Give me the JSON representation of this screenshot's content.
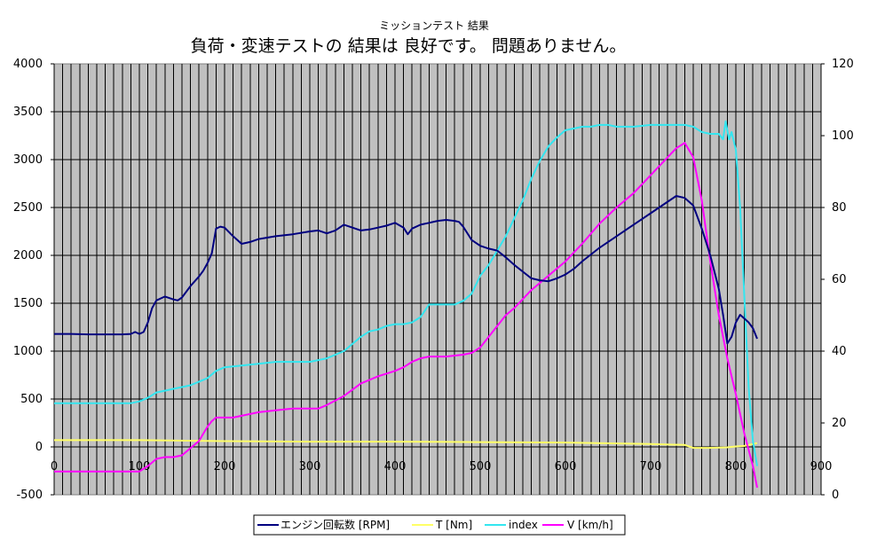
{
  "chart_data": {
    "type": "line",
    "subtitle": "ミッションテスト 結果",
    "title": "負荷・変速テストの 結果は 良好です。  問題ありません。",
    "xlim": [
      0,
      900
    ],
    "x_ticks": [
      "0",
      "100",
      "200",
      "300",
      "400",
      "500",
      "600",
      "700",
      "800",
      "900"
    ],
    "ylim_left": [
      -500,
      4000
    ],
    "y_ticks_left": [
      "-500",
      "0",
      "500",
      "1000",
      "1500",
      "2000",
      "2500",
      "3000",
      "3500",
      "4000"
    ],
    "ylim_right": [
      0,
      120
    ],
    "y_ticks_right": [
      "0",
      "20",
      "40",
      "60",
      "80",
      "100",
      "120"
    ],
    "grid": true,
    "plot_background": "#c0c0c0",
    "legend_position": "bottom-center",
    "series": [
      {
        "name": "エンジン回転数 [RPM]",
        "axis": "left",
        "color": "#000080",
        "x": [
          0,
          20,
          40,
          60,
          80,
          90,
          95,
          100,
          105,
          110,
          115,
          120,
          130,
          140,
          145,
          150,
          160,
          170,
          175,
          180,
          185,
          190,
          195,
          200,
          210,
          220,
          230,
          240,
          260,
          280,
          300,
          310,
          320,
          330,
          340,
          350,
          360,
          370,
          380,
          390,
          400,
          410,
          415,
          420,
          430,
          440,
          450,
          460,
          470,
          475,
          480,
          490,
          500,
          510,
          520,
          530,
          540,
          550,
          560,
          570,
          580,
          590,
          600,
          610,
          620,
          640,
          660,
          680,
          700,
          720,
          730,
          740,
          750,
          760,
          770,
          780,
          785,
          790,
          795,
          800,
          805,
          810,
          815,
          820,
          825
        ],
        "values": [
          1180,
          1180,
          1175,
          1175,
          1175,
          1180,
          1200,
          1180,
          1200,
          1300,
          1450,
          1530,
          1570,
          1540,
          1530,
          1560,
          1680,
          1780,
          1840,
          1920,
          2020,
          2280,
          2300,
          2290,
          2200,
          2120,
          2140,
          2170,
          2200,
          2220,
          2250,
          2260,
          2230,
          2260,
          2320,
          2290,
          2260,
          2270,
          2290,
          2310,
          2340,
          2290,
          2220,
          2280,
          2320,
          2340,
          2360,
          2370,
          2360,
          2350,
          2300,
          2160,
          2100,
          2070,
          2050,
          1980,
          1900,
          1830,
          1760,
          1740,
          1730,
          1760,
          1800,
          1860,
          1940,
          2080,
          2200,
          2320,
          2440,
          2560,
          2620,
          2600,
          2520,
          2280,
          2000,
          1650,
          1380,
          1080,
          1150,
          1300,
          1380,
          1340,
          1300,
          1240,
          1130
        ]
      },
      {
        "name": "T [Nm]",
        "axis": "left",
        "color": "#ffff66",
        "x": [
          0,
          100,
          200,
          300,
          400,
          500,
          600,
          700,
          740,
          750,
          770,
          790,
          800,
          810,
          820,
          825
        ],
        "values": [
          70,
          70,
          60,
          55,
          55,
          50,
          45,
          30,
          20,
          -10,
          -10,
          -5,
          5,
          10,
          30,
          40
        ]
      },
      {
        "name": "index",
        "axis": "right",
        "color": "#33e6f0",
        "x": [
          0,
          20,
          40,
          60,
          80,
          90,
          100,
          110,
          120,
          130,
          140,
          150,
          160,
          170,
          180,
          190,
          200,
          220,
          240,
          260,
          280,
          300,
          320,
          340,
          350,
          360,
          370,
          380,
          390,
          400,
          410,
          420,
          430,
          440,
          450,
          460,
          470,
          480,
          490,
          500,
          510,
          520,
          530,
          540,
          550,
          560,
          570,
          580,
          590,
          600,
          610,
          620,
          630,
          640,
          650,
          660,
          680,
          700,
          720,
          740,
          750,
          760,
          770,
          780,
          785,
          788,
          792,
          795,
          800,
          805,
          810,
          815,
          820,
          825
        ],
        "values": [
          25.5,
          25.5,
          25.5,
          25.5,
          25.5,
          25.5,
          26,
          27,
          28.5,
          29,
          29.5,
          30,
          30.5,
          31.5,
          32.5,
          34.5,
          35.5,
          36,
          36.5,
          37,
          37,
          37,
          38,
          40,
          42,
          44,
          45.5,
          46,
          47,
          47.5,
          47.5,
          48,
          49.5,
          53,
          53,
          53,
          53,
          54,
          56,
          61,
          64,
          68,
          72,
          77,
          82,
          88,
          93,
          97,
          99.5,
          101.5,
          102,
          102.5,
          102.5,
          103,
          103,
          102.5,
          102.5,
          103,
          103,
          103,
          102.5,
          101,
          100.5,
          100.5,
          99,
          104,
          99,
          101,
          96,
          80,
          55,
          30,
          15,
          8
        ]
      },
      {
        "name": "V [km/h]",
        "axis": "right",
        "color": "#ff00ff",
        "x": [
          0,
          20,
          40,
          60,
          80,
          100,
          110,
          120,
          130,
          140,
          150,
          160,
          170,
          175,
          180,
          185,
          190,
          200,
          210,
          220,
          230,
          240,
          260,
          280,
          300,
          310,
          320,
          340,
          360,
          380,
          400,
          410,
          420,
          430,
          440,
          460,
          480,
          490,
          500,
          510,
          520,
          530,
          540,
          550,
          560,
          570,
          580,
          590,
          600,
          620,
          640,
          660,
          680,
          700,
          720,
          730,
          740,
          745,
          750,
          760,
          770,
          780,
          790,
          800,
          810,
          820,
          825
        ],
        "values": [
          6.5,
          6.5,
          6.5,
          6.5,
          6.5,
          6.5,
          8,
          10,
          10.5,
          10.5,
          11,
          13,
          15,
          17,
          19,
          20.5,
          21.5,
          21.5,
          21.5,
          22,
          22.5,
          23,
          23.5,
          24,
          24,
          24,
          25,
          27.5,
          31,
          33,
          34.5,
          35.5,
          37,
          38,
          38.5,
          38.5,
          39,
          39.5,
          41,
          44,
          47,
          50,
          52,
          54.5,
          57,
          59,
          61,
          63,
          65,
          70,
          75.5,
          80,
          84,
          89,
          94,
          96.5,
          98,
          96,
          94,
          82,
          65,
          50,
          38,
          28,
          17,
          8,
          2
        ]
      }
    ]
  }
}
